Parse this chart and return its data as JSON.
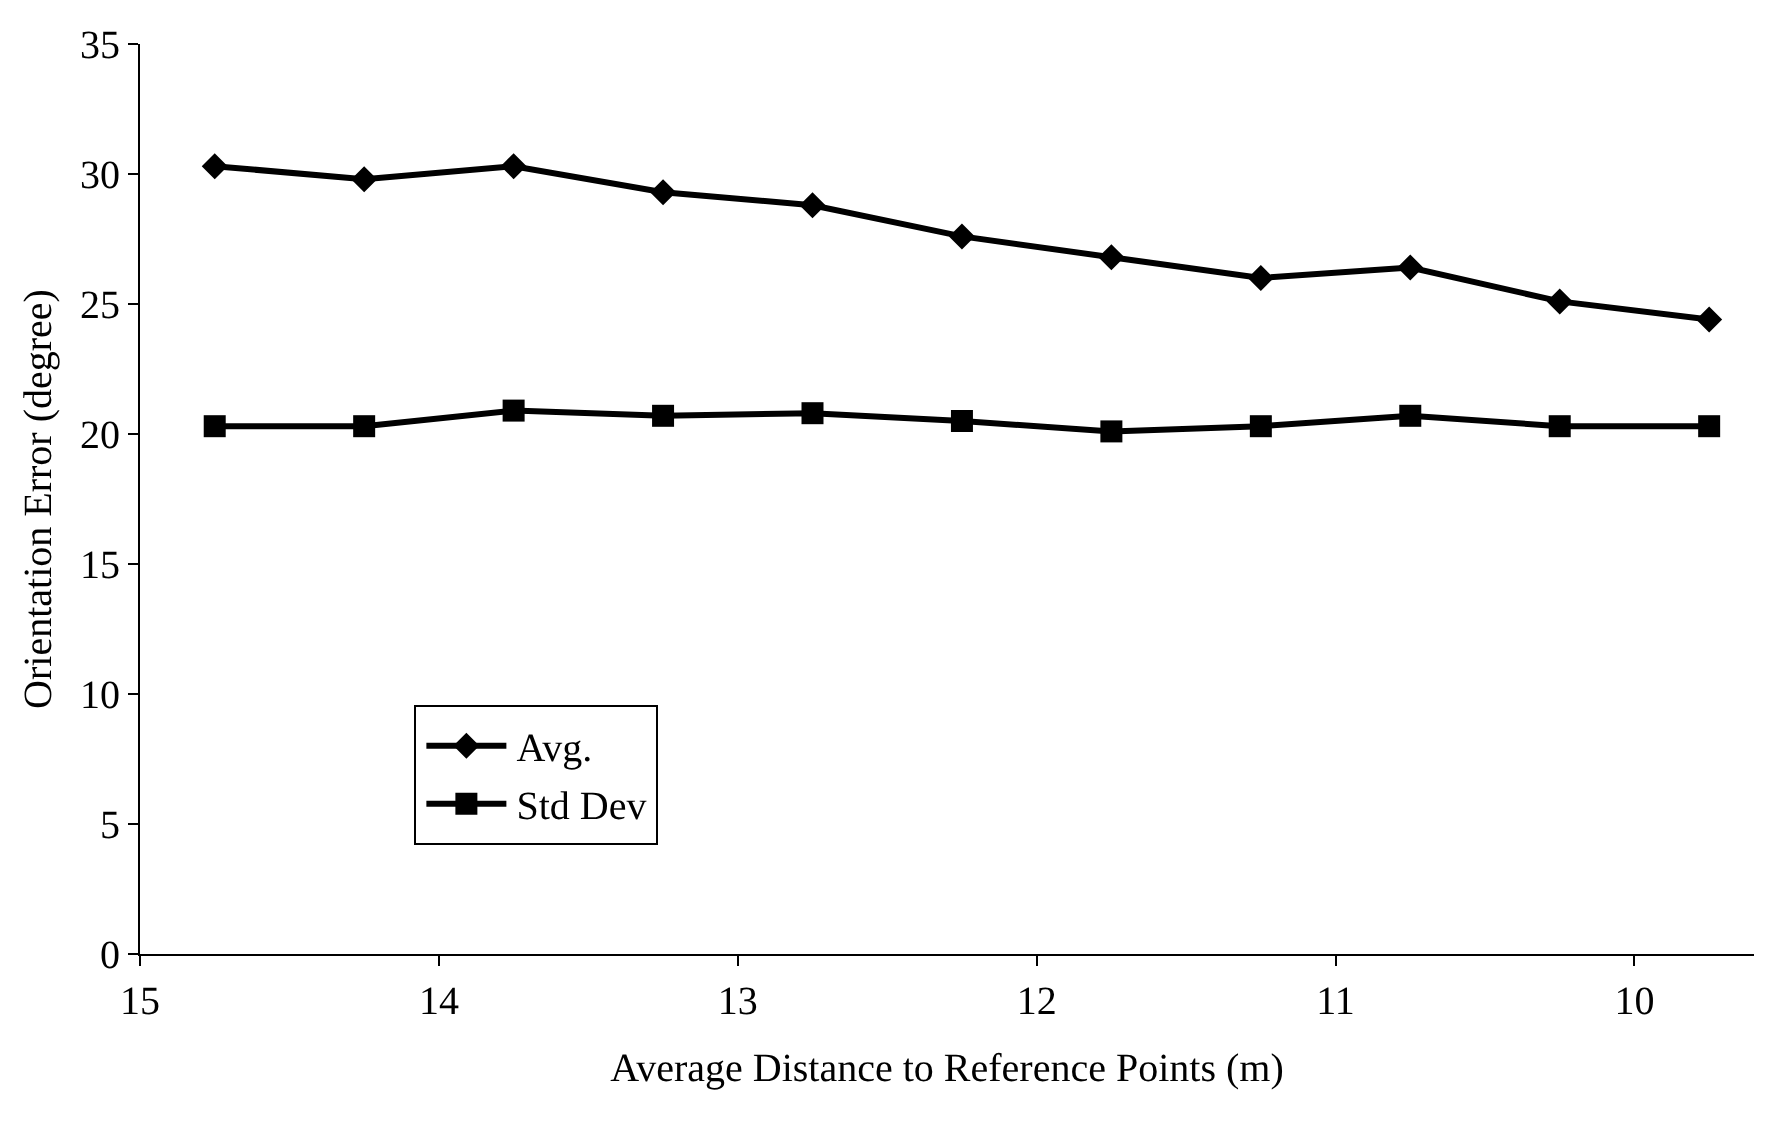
{
  "chart_data": {
    "type": "line",
    "xlabel": "Average Distance to Reference Points (m)",
    "ylabel": "Orientation Error (degree)",
    "x": [
      14.75,
      14.25,
      13.75,
      13.25,
      12.75,
      12.25,
      11.75,
      11.25,
      10.75,
      10.25,
      9.75
    ],
    "xlim": [
      15,
      9.6
    ],
    "xticks": [
      15,
      14,
      13,
      12,
      11,
      10
    ],
    "ylim": [
      0,
      35
    ],
    "yticks": [
      0,
      5,
      10,
      15,
      20,
      25,
      30,
      35
    ],
    "grid": false,
    "legend": "bottom left",
    "line_style": "solid",
    "series": [
      {
        "name": "Avg.",
        "color": "#000000",
        "marker": "diamond",
        "values": [
          30.3,
          29.8,
          30.3,
          29.3,
          28.8,
          27.6,
          26.8,
          26.0,
          26.4,
          25.1,
          24.4
        ]
      },
      {
        "name": "Std Dev",
        "color": "#000000",
        "marker": "square",
        "values": [
          20.3,
          20.3,
          20.9,
          20.7,
          20.8,
          20.5,
          20.1,
          20.3,
          20.7,
          20.3,
          20.3
        ]
      }
    ]
  }
}
